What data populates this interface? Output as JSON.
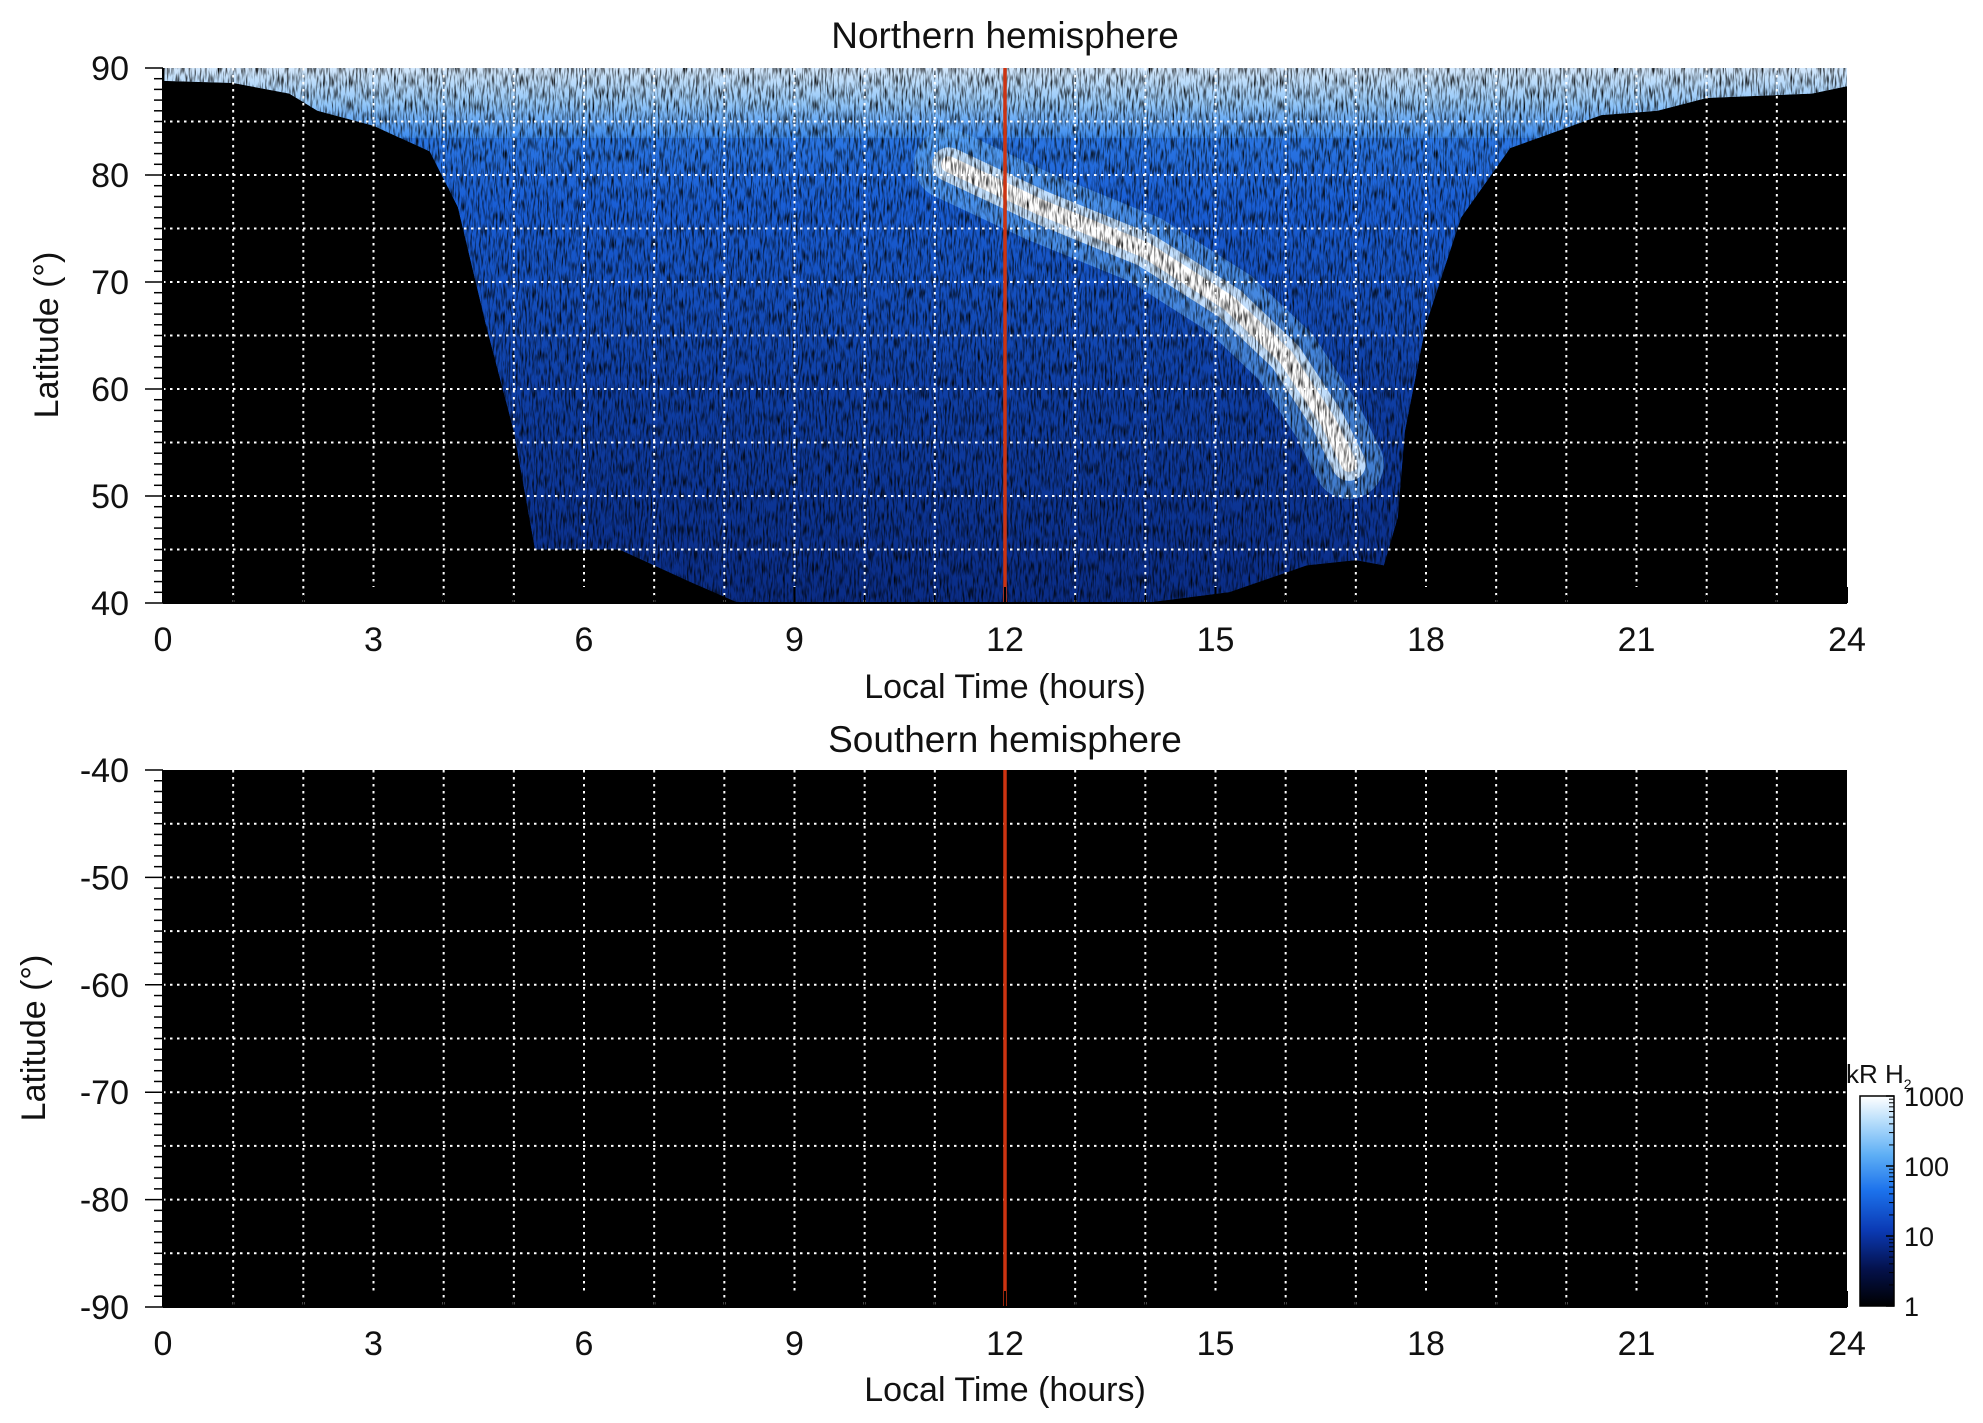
{
  "chart_data": [
    {
      "type": "heatmap",
      "title": "Northern hemisphere",
      "xlabel": "Local Time (hours)",
      "ylabel": "Latitude (°)",
      "xlim": [
        0,
        24
      ],
      "ylim": [
        40,
        90
      ],
      "xticks": [
        "0",
        "3",
        "6",
        "9",
        "12",
        "15",
        "18",
        "21",
        "24"
      ],
      "yticks": [
        "40",
        "50",
        "60",
        "70",
        "80",
        "90"
      ],
      "grid": true,
      "grid_style": "dotted",
      "grid_x_step_hours": 1,
      "grid_y_step_degrees": 5,
      "reference_line": {
        "x": 12,
        "color": "#cc3311"
      },
      "background_color": "#000000",
      "coverage_envelope": {
        "lower_latitude": [
          [
            0.0,
            88.8
          ],
          [
            1.0,
            88.6
          ],
          [
            1.8,
            87.6
          ],
          [
            2.2,
            86.0
          ],
          [
            3.0,
            84.6
          ],
          [
            3.8,
            82.2
          ],
          [
            4.2,
            77.0
          ],
          [
            4.6,
            66.0
          ],
          [
            5.0,
            56.0
          ],
          [
            5.3,
            45.0
          ],
          [
            6.5,
            45.0
          ],
          [
            7.5,
            42.0
          ],
          [
            8.2,
            40.0
          ],
          [
            14.0,
            40.0
          ],
          [
            15.2,
            41.0
          ],
          [
            16.3,
            43.5
          ],
          [
            17.0,
            44.0
          ],
          [
            17.4,
            43.5
          ],
          [
            17.6,
            48.0
          ],
          [
            17.7,
            56.0
          ],
          [
            18.0,
            66.0
          ],
          [
            18.5,
            76.0
          ],
          [
            19.2,
            82.5
          ],
          [
            20.5,
            85.6
          ],
          [
            21.3,
            86.0
          ],
          [
            22.0,
            87.2
          ],
          [
            23.5,
            87.6
          ],
          [
            24.0,
            88.3
          ]
        ],
        "upper_latitude": 90
      },
      "features": {
        "bright_arc": [
          [
            11.2,
            81.0
          ],
          [
            12.5,
            77.0
          ],
          [
            14.0,
            73.0
          ],
          [
            15.2,
            68.0
          ],
          [
            16.0,
            63.0
          ],
          [
            16.6,
            57.0
          ],
          [
            16.9,
            53.0
          ]
        ],
        "polar_cap_bright_latitude_min": 86,
        "diffuse_region_local_time": [
          7,
          17.5
        ]
      }
    },
    {
      "type": "heatmap",
      "title": "Southern hemisphere",
      "xlabel": "Local Time (hours)",
      "ylabel": "Latitude (°)",
      "xlim": [
        0,
        24
      ],
      "ylim": [
        -90,
        -40
      ],
      "xticks": [
        "0",
        "3",
        "6",
        "9",
        "12",
        "15",
        "18",
        "21",
        "24"
      ],
      "yticks": [
        "-40",
        "-50",
        "-60",
        "-70",
        "-80",
        "-90"
      ],
      "grid": true,
      "grid_style": "dotted",
      "grid_x_step_hours": 1,
      "grid_y_step_degrees": 5,
      "reference_line": {
        "x": 12,
        "color": "#cc3311"
      },
      "background_color": "#000000",
      "coverage_envelope": null
    }
  ],
  "colorbar": {
    "label_main": "kR H",
    "label_sub": "2",
    "scale": "log",
    "range": [
      1,
      1000
    ],
    "ticks": [
      "1000",
      "100",
      "10",
      "1"
    ],
    "tick_values": [
      1000,
      100,
      10,
      1
    ],
    "colormap": [
      "#000000",
      "#04124e",
      "#0b3ab4",
      "#1c72ec",
      "#5eaff5",
      "#b8defb",
      "#ffffff"
    ]
  }
}
